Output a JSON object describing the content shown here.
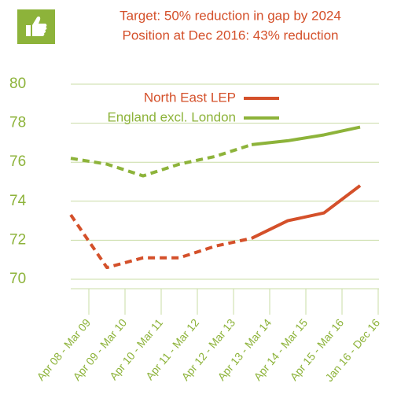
{
  "chart_data": {
    "type": "line",
    "title": "Target: 50% reduction in gap by 2024",
    "subtitle": "Position at Dec 2016: 43% reduction",
    "categories": [
      "Apr 08 - Mar 09",
      "Apr 09 - Mar 10",
      "Apr 10 - Mar 11",
      "Apr 11 - Mar 12",
      "Apr 12 - Mar 13",
      "Apr 13 - Mar 14",
      "Apr 14 - Mar 15",
      "Apr 15 - Mar 16",
      "Jan 16 - Dec 16"
    ],
    "series": [
      {
        "name": "North East LEP",
        "color": "#d4502a",
        "values": [
          73.3,
          70.6,
          71.1,
          71.1,
          71.7,
          72.1,
          73.0,
          73.4,
          74.8
        ],
        "dashed_before": 5
      },
      {
        "name": "England excl. London",
        "color": "#8db33a",
        "values": [
          76.2,
          75.9,
          75.3,
          75.9,
          76.3,
          76.9,
          77.1,
          77.4,
          77.8
        ],
        "dashed_before": 5
      }
    ],
    "ylim": [
      70,
      80
    ],
    "yticks": [
      70,
      72,
      74,
      76,
      78,
      80
    ],
    "grid": true
  }
}
